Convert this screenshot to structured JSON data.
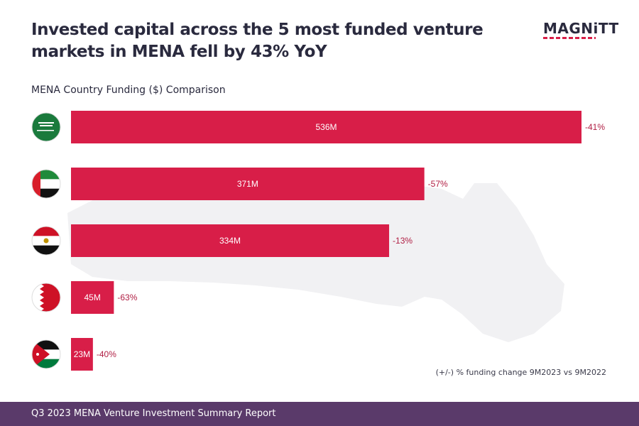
{
  "header": {
    "title": "Invested capital across the 5 most funded venture markets in MENA fell by 43% YoY",
    "logo": "MAGNiTT"
  },
  "chart_data": {
    "type": "bar",
    "orientation": "horizontal",
    "title": "MENA Country Funding ($) Comparison",
    "categories": [
      "Saudi Arabia",
      "UAE",
      "Egypt",
      "Bahrain",
      "Jordan"
    ],
    "category_icons": [
      "flag-saudi-arabia",
      "flag-uae",
      "flag-egypt",
      "flag-bahrain",
      "flag-jordan"
    ],
    "values": [
      536,
      371,
      334,
      45,
      23
    ],
    "value_labels": [
      "536M",
      "371M",
      "334M",
      "45M",
      "23M"
    ],
    "change_labels": [
      "-41%",
      "-57%",
      "-13%",
      "-63%",
      "-40%"
    ],
    "xlim": [
      0,
      536
    ],
    "grid": false,
    "legend": "none",
    "note": "(+/-) % funding change 9M2023 vs 9M2022"
  },
  "footer": {
    "text": "Q3 2023 MENA Venture Investment Summary Report"
  },
  "colors": {
    "bar": "#d81e48",
    "change_text": "#b01e43",
    "title": "#2a2a3e",
    "footer_bg": "#5a3a6a",
    "map": "#f1f1f3"
  }
}
